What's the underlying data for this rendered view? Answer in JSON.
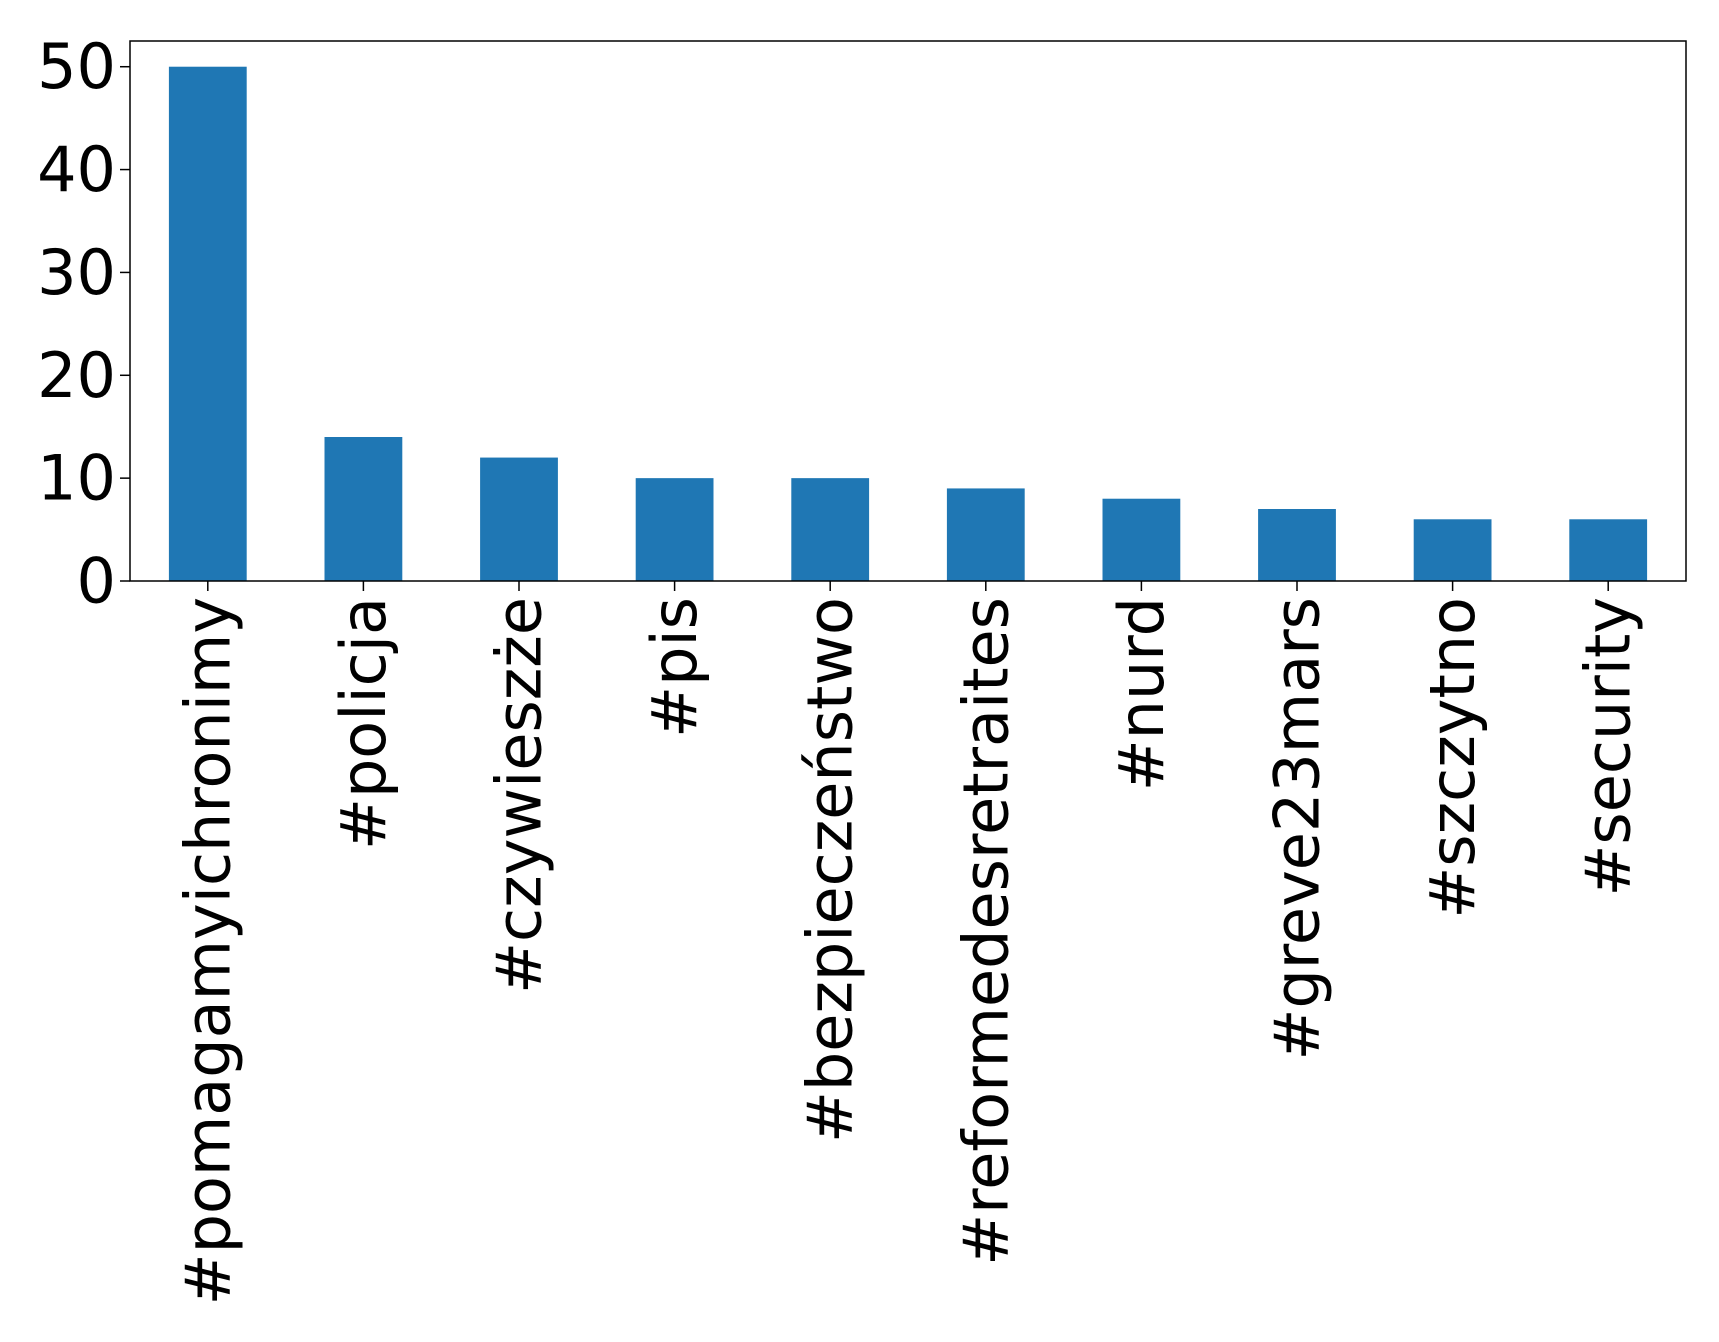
{
  "chart_data": {
    "type": "bar",
    "title": "",
    "xlabel": "",
    "ylabel": "",
    "categories": [
      "#pomagamyichronimy",
      "#policja",
      "#czywieszże",
      "#pis",
      "#bezpieczeństwo",
      "#reformedesretraites",
      "#nurd",
      "#greve23mars",
      "#szczytno",
      "#security"
    ],
    "values": [
      50,
      14,
      12,
      10,
      10,
      9,
      8,
      7,
      6,
      6
    ],
    "ylim": [
      0,
      52.5
    ],
    "yticks": [
      0,
      10,
      20,
      30,
      40,
      50
    ],
    "grid": false,
    "legend": "none",
    "colors": {
      "bar": "#1f77b4",
      "axis": "#000000",
      "background": "#ffffff"
    }
  }
}
